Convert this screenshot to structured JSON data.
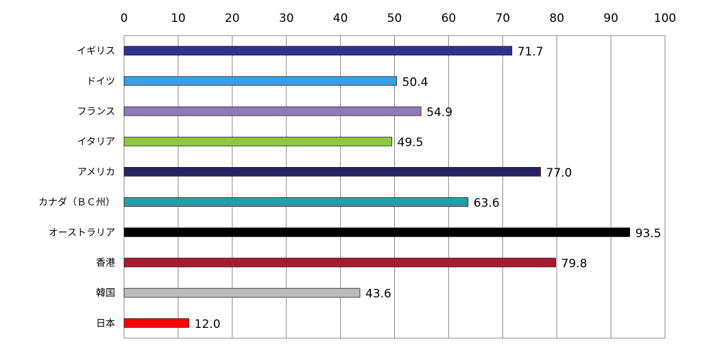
{
  "chart_data": {
    "type": "bar",
    "orientation": "horizontal",
    "categories": [
      "イギリス",
      "ドイツ",
      "フランス",
      "イタリア",
      "アメリカ",
      "カナダ（ＢＣ州）",
      "オーストラリア",
      "香港",
      "韓国",
      "日本"
    ],
    "values": [
      71.7,
      50.4,
      54.9,
      49.5,
      77.0,
      63.6,
      93.5,
      79.8,
      43.6,
      12.0
    ],
    "value_labels": [
      "71.7",
      "50.4",
      "54.9",
      "49.5",
      "77.0",
      "63.6",
      "93.5",
      "79.8",
      "43.6",
      "12.0"
    ],
    "colors": [
      "#2e3192",
      "#3a9ee4",
      "#8e7ab5",
      "#8dc63f",
      "#262262",
      "#2a9aa3",
      "#000000",
      "#a71930",
      "#bcbcbc",
      "#ff0000"
    ],
    "title": "",
    "xlabel": "",
    "ylabel": "",
    "xlim": [
      0,
      100
    ],
    "ticks": [
      "0",
      "10",
      "20",
      "30",
      "40",
      "50",
      "60",
      "70",
      "80",
      "90",
      "100"
    ],
    "tick_values": [
      0,
      10,
      20,
      30,
      40,
      50,
      60,
      70,
      80,
      90,
      100
    ],
    "axis_position": "top",
    "grid": true,
    "legend": "none"
  }
}
